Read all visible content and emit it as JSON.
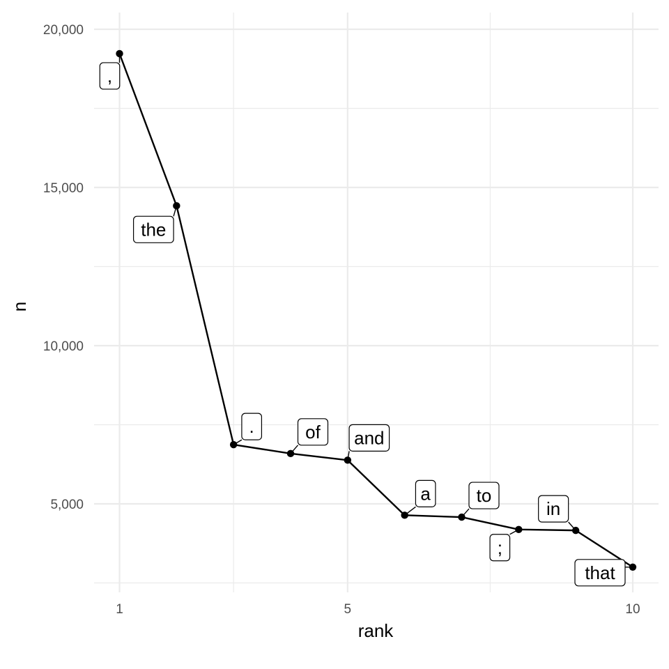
{
  "chart_data": {
    "type": "line",
    "title": "",
    "xlabel": "rank",
    "ylabel": "n",
    "xlim": [
      0.55,
      10.45
    ],
    "ylim": [
      2500,
      20000
    ],
    "x_ticks": [
      1,
      5,
      10
    ],
    "x_tick_labels": [
      "1",
      "5",
      "10"
    ],
    "y_ticks": [
      5000,
      10000,
      15000,
      20000
    ],
    "y_tick_labels": [
      "5,000",
      "10,000",
      "15,000",
      "20,000"
    ],
    "grid": true,
    "series": [
      {
        "x": [
          1,
          2,
          3,
          4,
          5,
          6,
          7,
          8,
          9,
          10
        ],
        "y": [
          19230,
          14420,
          6870,
          6590,
          6380,
          4640,
          4580,
          4190,
          4160,
          3000
        ],
        "labels": [
          ",",
          "the",
          ".",
          "of",
          "and",
          "a",
          "to",
          ";",
          "in",
          "that"
        ]
      }
    ],
    "line_color": "#000000",
    "grid_color": "#ebebeb"
  }
}
